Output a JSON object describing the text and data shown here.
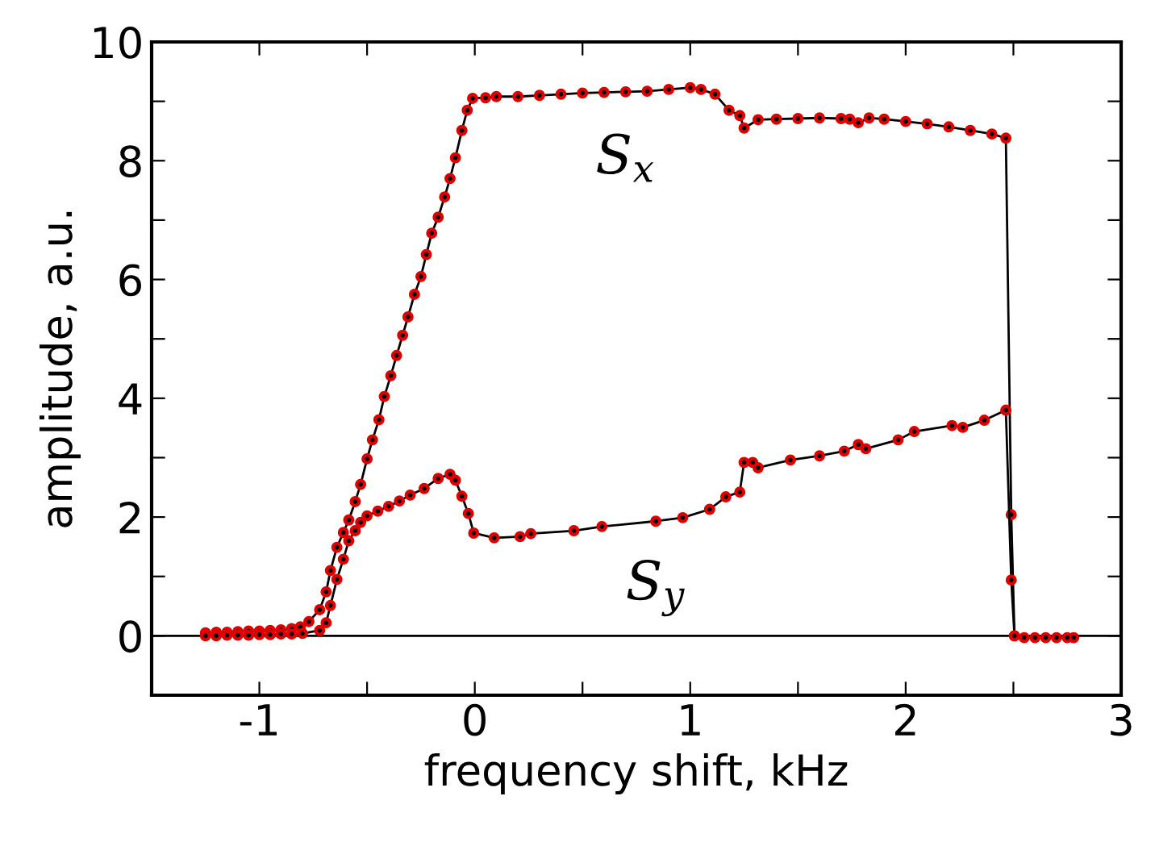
{
  "chart_data": {
    "type": "line",
    "xlabel": "frequency shift, kHz",
    "ylabel": "amplitude, a.u.",
    "xlim": [
      -1.5,
      3
    ],
    "ylim": [
      -1,
      10
    ],
    "xticks": [
      {
        "value": -1.5,
        "label": null
      },
      -1,
      {
        "value": -0.5,
        "label": null
      },
      0,
      {
        "value": 0.5,
        "label": null
      },
      1,
      {
        "value": 1.5,
        "label": null
      },
      2,
      {
        "value": 2.5,
        "label": null
      },
      3
    ],
    "yticks": [
      {
        "value": -1,
        "label": null
      },
      0,
      {
        "value": 1,
        "label": null
      },
      2,
      {
        "value": 3,
        "label": null
      },
      4,
      {
        "value": 5,
        "label": null
      },
      6,
      {
        "value": 7,
        "label": null
      },
      8,
      {
        "value": 9,
        "label": null
      },
      10
    ],
    "marker": "circle",
    "line_style": "solid",
    "grid": false,
    "legend": false,
    "ref_lines": [
      {
        "axis": "y",
        "value": 0,
        "color": "#000000"
      }
    ],
    "series": [
      {
        "name": "S$_{x}$",
        "color": "#e00000",
        "x": [
          -1.25,
          -1.2,
          -1.15,
          -1.1,
          -1.05,
          -1.0,
          -0.95,
          -0.9,
          -0.85,
          -0.81,
          -0.77,
          -0.72,
          -0.69,
          -0.67,
          -0.64,
          -0.61,
          -0.585,
          -0.555,
          -0.53,
          -0.5,
          -0.475,
          -0.445,
          -0.42,
          -0.39,
          -0.363,
          -0.335,
          -0.31,
          -0.28,
          -0.25,
          -0.225,
          -0.2,
          -0.17,
          -0.14,
          -0.115,
          -0.09,
          -0.06,
          -0.035,
          -0.01,
          0.05,
          0.1,
          0.2,
          0.3,
          0.4,
          0.5,
          0.6,
          0.7,
          0.8,
          0.9,
          1.0,
          1.05,
          1.115,
          1.18,
          1.23,
          1.25,
          1.315,
          1.4,
          1.5,
          1.6,
          1.7,
          1.74,
          1.78,
          1.83,
          1.9,
          2.0,
          2.1,
          2.2,
          2.3,
          2.4,
          2.465,
          2.49,
          2.505,
          2.55,
          2.6,
          2.65,
          2.7,
          2.75,
          2.78
        ],
        "values": [
          0.05,
          0.06,
          0.06,
          0.07,
          0.08,
          0.08,
          0.09,
          0.1,
          0.12,
          0.15,
          0.24,
          0.44,
          0.74,
          1.1,
          1.49,
          1.74,
          1.95,
          2.26,
          2.55,
          2.98,
          3.3,
          3.64,
          4.03,
          4.38,
          4.72,
          5.06,
          5.37,
          5.75,
          6.05,
          6.42,
          6.78,
          7.05,
          7.39,
          7.7,
          8.05,
          8.51,
          8.85,
          9.05,
          9.06,
          9.08,
          9.08,
          9.1,
          9.12,
          9.14,
          9.15,
          9.16,
          9.17,
          9.2,
          9.23,
          9.2,
          9.12,
          8.85,
          8.76,
          8.55,
          8.69,
          8.7,
          8.71,
          8.72,
          8.71,
          8.7,
          8.64,
          8.72,
          8.7,
          8.66,
          8.62,
          8.57,
          8.51,
          8.45,
          8.38,
          2.04,
          0.0,
          -0.03,
          -0.03,
          -0.03,
          -0.03,
          -0.03,
          -0.03
        ]
      },
      {
        "name": "S$_{y}$",
        "color": "#e00000",
        "x": [
          -1.25,
          -1.2,
          -1.15,
          -1.1,
          -1.05,
          -1.0,
          -0.95,
          -0.9,
          -0.85,
          -0.8,
          -0.72,
          -0.69,
          -0.67,
          -0.64,
          -0.61,
          -0.585,
          -0.555,
          -0.53,
          -0.5,
          -0.45,
          -0.4,
          -0.35,
          -0.3,
          -0.235,
          -0.17,
          -0.115,
          -0.09,
          -0.06,
          -0.03,
          -0.005,
          0.09,
          0.21,
          0.26,
          0.46,
          0.59,
          0.84,
          0.965,
          1.09,
          1.165,
          1.23,
          1.25,
          1.29,
          1.315,
          1.465,
          1.6,
          1.715,
          1.78,
          1.815,
          1.965,
          2.04,
          2.215,
          2.265,
          2.365,
          2.465,
          2.49,
          2.505
        ],
        "values": [
          0.0,
          0.0,
          0.01,
          0.01,
          0.01,
          0.02,
          0.02,
          0.03,
          0.03,
          0.04,
          0.09,
          0.22,
          0.51,
          0.95,
          1.29,
          1.6,
          1.77,
          1.91,
          2.02,
          2.1,
          2.18,
          2.27,
          2.37,
          2.48,
          2.65,
          2.72,
          2.62,
          2.35,
          2.06,
          1.73,
          1.65,
          1.67,
          1.72,
          1.77,
          1.84,
          1.93,
          1.99,
          2.13,
          2.34,
          2.42,
          2.92,
          2.92,
          2.83,
          2.96,
          3.03,
          3.11,
          3.22,
          3.15,
          3.3,
          3.44,
          3.54,
          3.51,
          3.63,
          3.8,
          0.94,
          0.0
        ]
      }
    ]
  }
}
